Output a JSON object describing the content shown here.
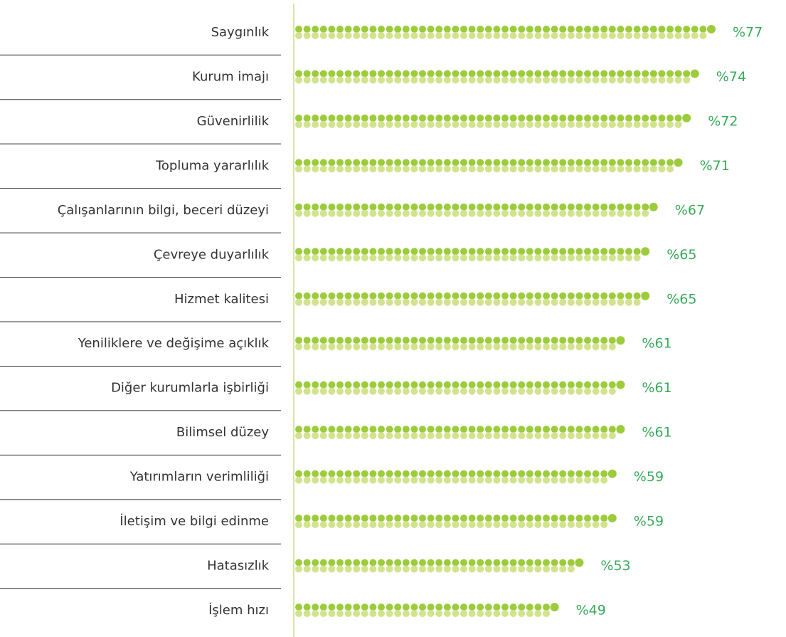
{
  "chart_data": {
    "type": "dotbar",
    "categories": [
      "Saygınlık",
      "Kurum imajı",
      "Güvenirlilik",
      "Topluma yararlılık",
      "Çalışanlarının bilgi, beceri düzeyi",
      "Çevreye duyarlılık",
      "Hizmet kalitesi",
      "Yeniliklere ve değişime açıklık",
      "Diğer kurumlarla işbirliği",
      "Bilimsel düzey",
      "Yatırımların verimliliği",
      "İletişim ve bilgi edinme",
      "Hatasızlık",
      "İşlem hızı"
    ],
    "values": [
      77,
      74,
      72,
      71,
      67,
      65,
      65,
      61,
      61,
      61,
      59,
      59,
      53,
      49
    ],
    "value_labels": [
      "%77",
      "%74",
      "%72",
      "%71",
      "%67",
      "%65",
      "%65",
      "%61",
      "%61",
      "%61",
      "%59",
      "%59",
      "%53",
      "%49"
    ],
    "color": "#9ccc3c",
    "color_light": "#d2e38e",
    "label_color": "#3aaa5a"
  }
}
